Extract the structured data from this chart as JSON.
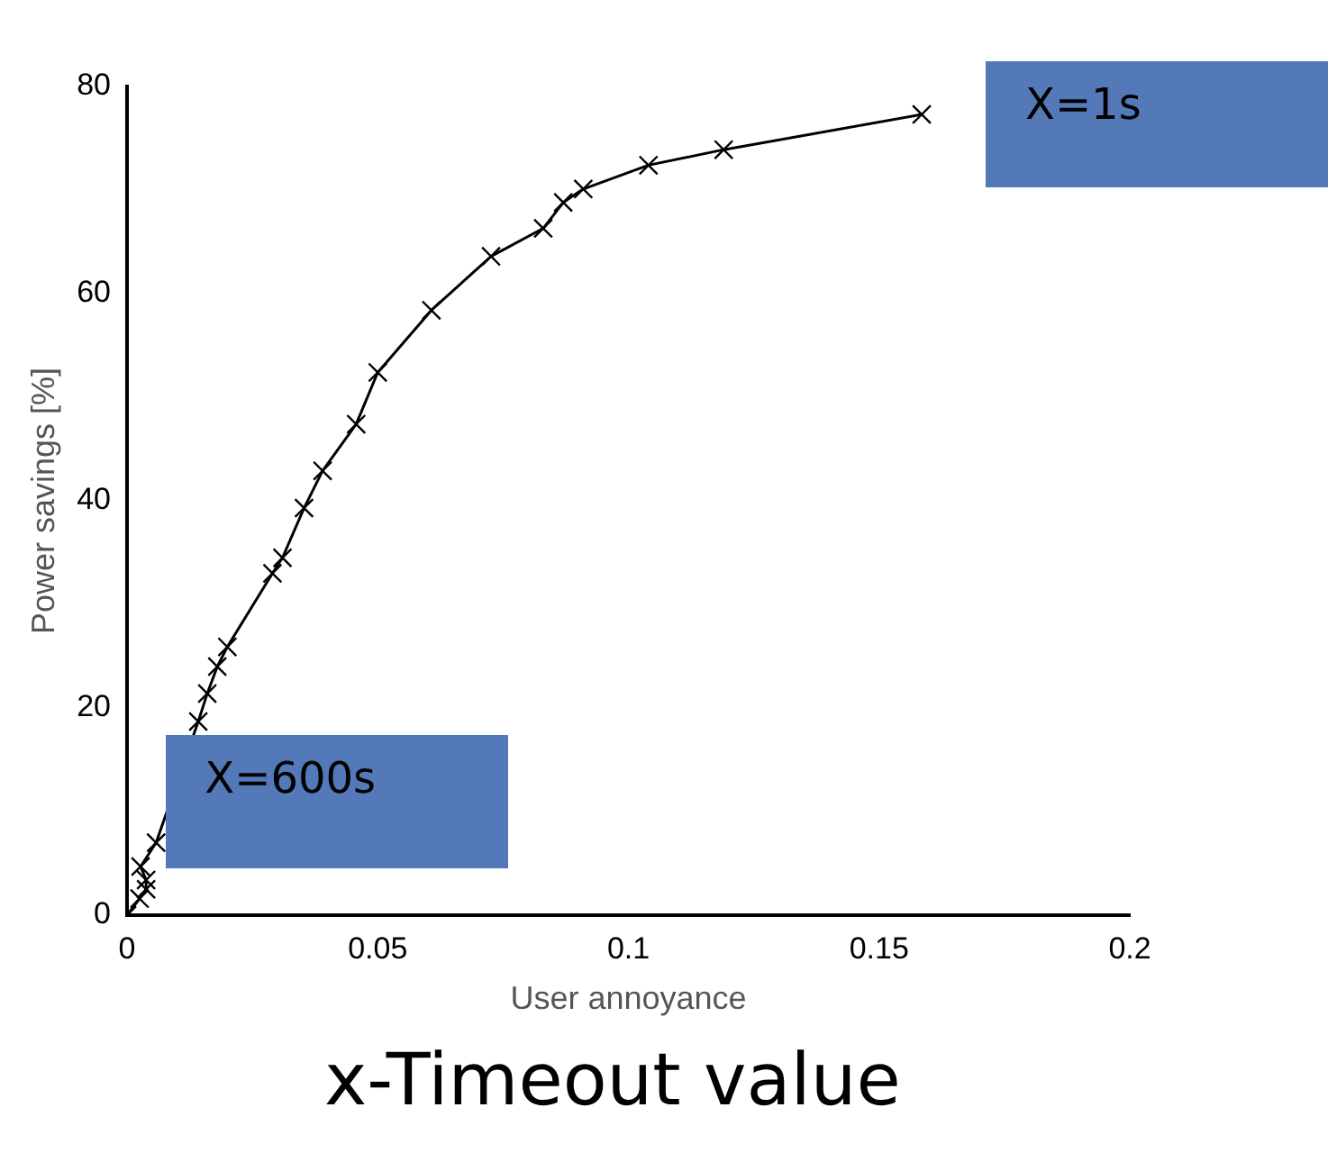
{
  "chart_data": {
    "type": "line",
    "xlabel": "User annoyance",
    "ylabel": "Power savings [%]",
    "x": [
      0,
      0.0025,
      0.0038,
      0.0038,
      0.0027,
      0.0058,
      0.0142,
      0.016,
      0.018,
      0.02,
      0.029,
      0.031,
      0.0353,
      0.039,
      0.0457,
      0.05,
      0.0607,
      0.0726,
      0.083,
      0.087,
      0.091,
      0.104,
      0.119,
      0.1585
    ],
    "series": [
      {
        "color": "#000000",
        "values": [
          0,
          1.6,
          2.5,
          3.4,
          4.7,
          7.0,
          18.7,
          21.4,
          24,
          25.9,
          33,
          34.5,
          39.3,
          42.9,
          47.4,
          52.4,
          58.4,
          63.6,
          66.3,
          68.8,
          70.1,
          72.4,
          73.9,
          77.3
        ]
      }
    ],
    "xlim": [
      0,
      0.2
    ],
    "xticks": [
      0,
      0.05,
      0.1,
      0.15,
      0.2
    ],
    "ylim": [
      0,
      80
    ],
    "yticks": [
      0,
      20,
      40,
      60,
      80
    ],
    "grid": false,
    "legend": false,
    "marker": "cross",
    "line_style": "solid",
    "annotations": [
      {
        "text": "X=1s",
        "x": 0.1585,
        "y": 77.3
      },
      {
        "text": "X=600s",
        "x": 0.0058,
        "y": 7.0
      },
      "x-Timeout value"
    ]
  }
}
